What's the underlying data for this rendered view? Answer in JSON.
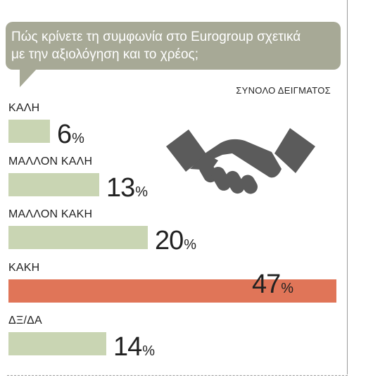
{
  "question": {
    "line1": "Πώς κρίνετε τη συμφωνία στο Eurogroup σχετικά",
    "line2": "με την αξιολόγηση και το χρέος;"
  },
  "sample_label": "ΣΥΝΟΛΟ ΔΕΙΓΜΑΤΟΣ",
  "colors": {
    "bubble": "#a7a996",
    "bar_default": "#c9d5b3",
    "bar_highlight": "#e07558",
    "icon": "#5b5b5b"
  },
  "icons": [
    "handshake-icon"
  ],
  "chart_data": {
    "type": "bar",
    "orientation": "horizontal",
    "title": "Πώς κρίνετε τη συμφωνία στο Eurogroup σχετικά με την αξιολόγηση και το χρέος;",
    "subtitle": "ΣΥΝΟΛΟ ΔΕΙΓΜΑΤΟΣ",
    "categories": [
      "ΚΑΛΗ",
      "ΜΑΛΛΟΝ ΚΑΛΗ",
      "ΜΑΛΛΟΝ ΚΑΚΗ",
      "ΚΑΚΗ",
      "ΔΞ/ΔΑ"
    ],
    "values": [
      6,
      13,
      20,
      47,
      14
    ],
    "value_labels": [
      "6",
      "13",
      "20",
      "47",
      "14"
    ],
    "unit": "%",
    "highlight_index": 3,
    "xlim": [
      0,
      47
    ],
    "grid": false,
    "legend": "none"
  }
}
